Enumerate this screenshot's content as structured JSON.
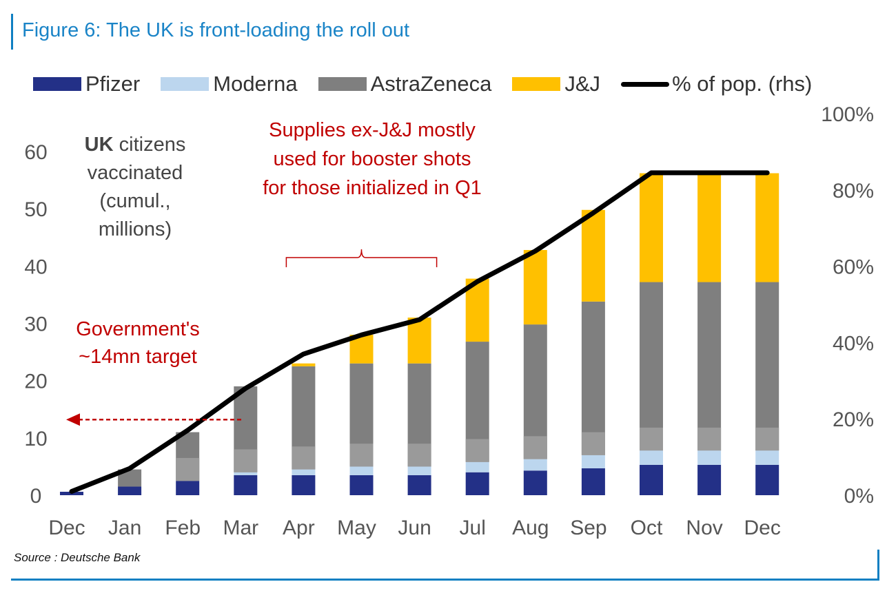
{
  "title": "Figure 6: The UK is front-loading the roll out",
  "source": "Source : Deutsche Bank",
  "colors": {
    "frame": "#0f7fc2",
    "title": "#1a84c7",
    "Pfizer": "#233087",
    "Moderna": "#bcd6ee",
    "AstraZeneca": "#7f7f7f",
    "J&J": "#ffc000",
    "line": "#000000",
    "annotation": "#c00000",
    "axis_text": "#555555"
  },
  "annotations": {
    "y_caption_bold": "UK",
    "y_caption_rest": " citizens",
    "y_caption_lines": [
      "vaccinated",
      "(cumul.,",
      "millions)"
    ],
    "supplies_note": [
      "Supplies ex-J&J mostly",
      "used for booster shots",
      "for those initialized in Q1"
    ],
    "gov_note": [
      "Government's",
      "~14mn target"
    ],
    "gov_target_value": 13.2,
    "booster_bracket_from": "Apr",
    "booster_bracket_to": "Jun"
  },
  "chart_data": {
    "type": "bar",
    "stacked": true,
    "categories": [
      "Dec",
      "Jan",
      "Feb",
      "Mar",
      "Apr",
      "May",
      "Jun",
      "Jul",
      "Aug",
      "Sep",
      "Oct",
      "Nov",
      "Dec"
    ],
    "series": [
      {
        "name": "Pfizer",
        "values": [
          0.6,
          1.5,
          2.5,
          3.5,
          3.5,
          3.5,
          3.5,
          4.0,
          4.3,
          4.7,
          5.3,
          5.3,
          5.3
        ]
      },
      {
        "name": "Moderna",
        "values": [
          0,
          0,
          0,
          0.5,
          1.0,
          1.5,
          1.5,
          1.8,
          2.0,
          2.3,
          2.5,
          2.5,
          2.5
        ]
      },
      {
        "name": "AstraZeneca",
        "values": [
          0,
          3.0,
          8.5,
          15.0,
          18.0,
          18.0,
          18.0,
          21.0,
          23.5,
          26.8,
          29.4,
          29.4,
          29.4
        ]
      },
      {
        "name": "J&J",
        "values": [
          0,
          0,
          0,
          0,
          0.5,
          5.0,
          8.0,
          11.0,
          13.0,
          16.0,
          19.0,
          19.0,
          19.0
        ]
      }
    ],
    "bar_segment_order": [
      "Pfizer",
      "Moderna",
      "AstraZeneca",
      "J&J"
    ],
    "bar_lighter_after": {
      "AstraZeneca": [
        2,
        3,
        4,
        5,
        6,
        7,
        8,
        9,
        10,
        11,
        12
      ]
    },
    "line_series": {
      "name": "% of pop. (rhs)",
      "axis": "right",
      "values": [
        1,
        7,
        17,
        28,
        37,
        42,
        46,
        56,
        64,
        74,
        84.5,
        84.5,
        84.5
      ]
    },
    "y_left": {
      "min": 0,
      "max": 60,
      "ticks": [
        0,
        10,
        20,
        30,
        40,
        50,
        60
      ],
      "max_shown": 66.6
    },
    "y_right": {
      "min": 0,
      "max": 100,
      "ticks": [
        "0%",
        "20%",
        "40%",
        "60%",
        "80%",
        "100%"
      ]
    },
    "legend": {
      "position": "top",
      "entries": [
        "Pfizer",
        "Moderna",
        "AstraZeneca",
        "J&J",
        "% of pop. (rhs)"
      ]
    },
    "grid": false
  }
}
